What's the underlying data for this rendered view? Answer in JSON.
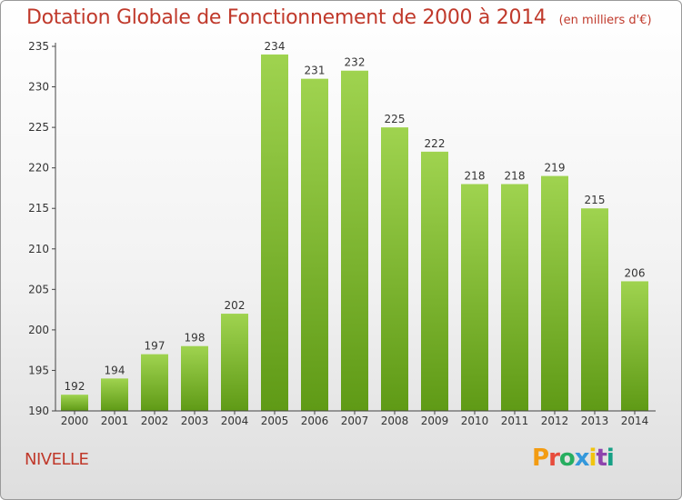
{
  "header": {
    "title": "Dotation Globale de Fonctionnement de 2000 à 2014",
    "unit": "(en milliers d'€)"
  },
  "footer": {
    "commune": "NIVELLE",
    "logo_text": "Proxiti"
  },
  "colors": {
    "title": "#c0392b",
    "bar_light": "#9fd34f",
    "bar_dark": "#5f9a16",
    "axis": "#444444",
    "logo": [
      "#f39c12",
      "#e74c3c",
      "#27ae60",
      "#3498db",
      "#f1c40f",
      "#8e44ad",
      "#16a085"
    ]
  },
  "chart_data": {
    "type": "bar",
    "title": "Dotation Globale de Fonctionnement de 2000 à 2014",
    "subtitle": "(en milliers d'€)",
    "xlabel": "",
    "ylabel": "",
    "categories": [
      "2000",
      "2001",
      "2002",
      "2003",
      "2004",
      "2005",
      "2006",
      "2007",
      "2008",
      "2009",
      "2010",
      "2011",
      "2012",
      "2013",
      "2014"
    ],
    "values": [
      192,
      194,
      197,
      198,
      202,
      234,
      231,
      232,
      225,
      222,
      218,
      218,
      219,
      215,
      206
    ],
    "ylim": [
      190,
      235
    ],
    "yticks": [
      190,
      195,
      200,
      205,
      210,
      215,
      220,
      225,
      230,
      235
    ],
    "grid": false,
    "legend": "none"
  }
}
